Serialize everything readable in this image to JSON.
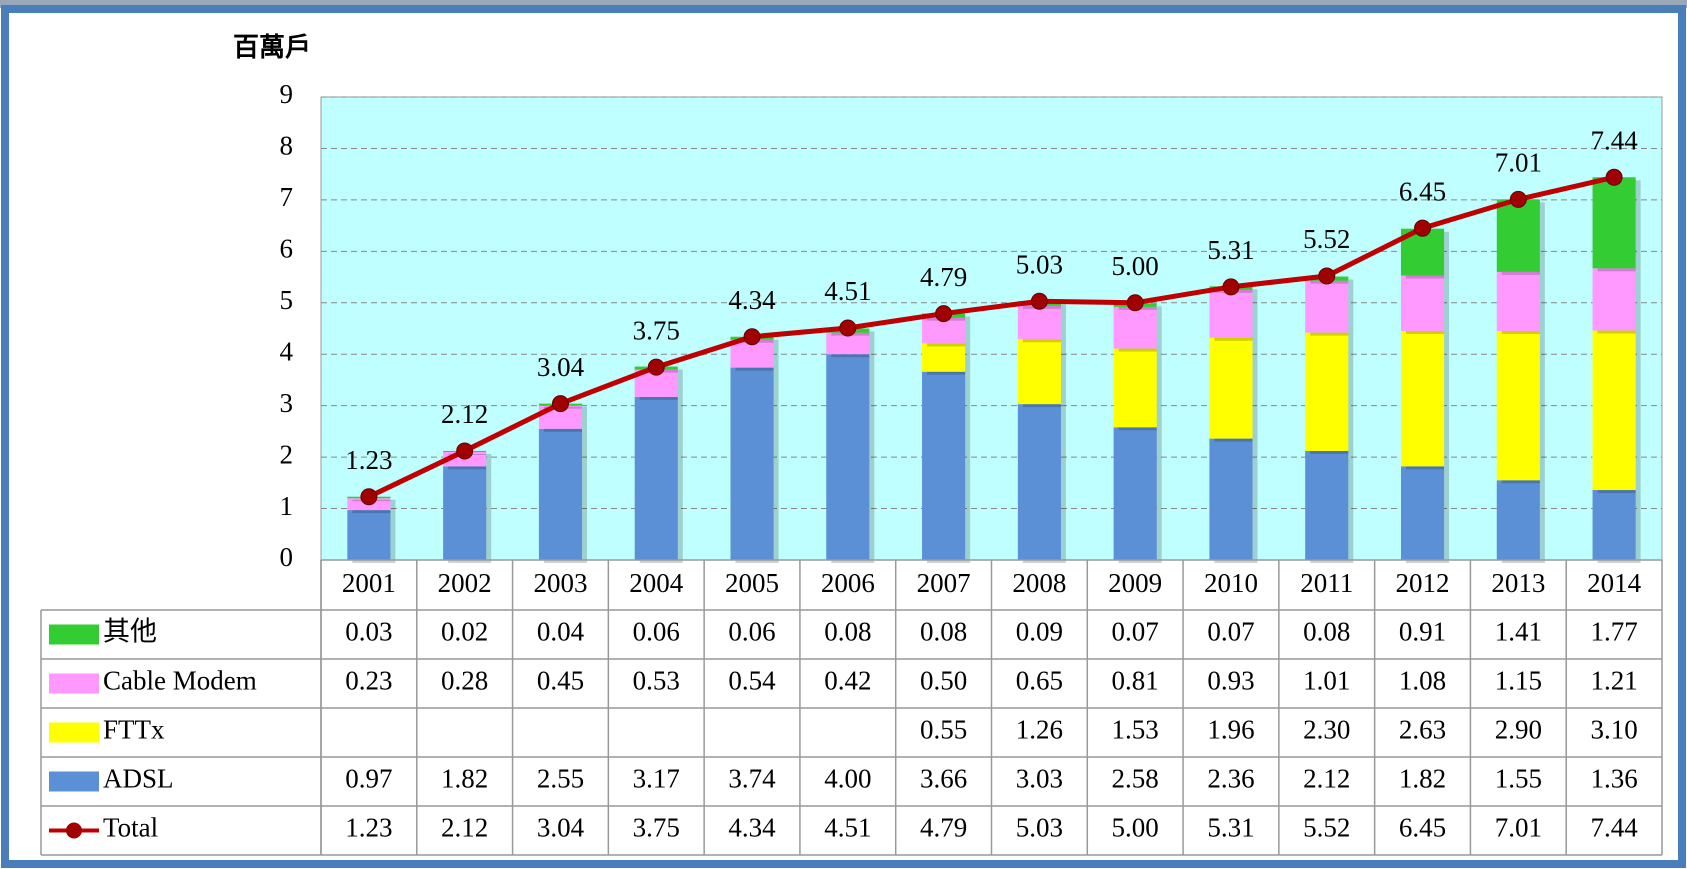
{
  "chart_data": {
    "type": "bar",
    "stacked": true,
    "y_label": "百萬戶",
    "categories": [
      "2001",
      "2002",
      "2003",
      "2004",
      "2005",
      "2006",
      "2007",
      "2008",
      "2009",
      "2010",
      "2011",
      "2012",
      "2013",
      "2014"
    ],
    "ylim": [
      0,
      9
    ],
    "yticks": [
      0,
      1,
      2,
      3,
      4,
      5,
      6,
      7,
      8,
      9
    ],
    "grid": true,
    "background": "#c0ffff",
    "series": [
      {
        "name": "ADSL",
        "color": "#5b8fd6",
        "values": [
          0.97,
          1.82,
          2.55,
          3.17,
          3.74,
          4.0,
          3.66,
          3.03,
          2.58,
          2.36,
          2.12,
          1.82,
          1.55,
          1.36
        ],
        "value_labels": [
          "0.97",
          "1.82",
          "2.55",
          "3.17",
          "3.74",
          "4.00",
          "3.66",
          "3.03",
          "2.58",
          "2.36",
          "2.12",
          "1.82",
          "1.55",
          "1.36"
        ]
      },
      {
        "name": "FTTx",
        "color": "#ffff00",
        "values": [
          null,
          null,
          null,
          null,
          null,
          null,
          0.55,
          1.26,
          1.53,
          1.96,
          2.3,
          2.63,
          2.9,
          3.1
        ],
        "value_labels": [
          null,
          null,
          null,
          null,
          null,
          null,
          "0.55",
          "1.26",
          "1.53",
          "1.96",
          "2.30",
          "2.63",
          "2.90",
          "3.10"
        ]
      },
      {
        "name": "Cable Modem",
        "color": "#ff99ff",
        "values": [
          0.23,
          0.28,
          0.45,
          0.53,
          0.54,
          0.42,
          0.5,
          0.65,
          0.81,
          0.93,
          1.01,
          1.08,
          1.15,
          1.21
        ],
        "value_labels": [
          "0.23",
          "0.28",
          "0.45",
          "0.53",
          "0.54",
          "0.42",
          "0.50",
          "0.65",
          "0.81",
          "0.93",
          "1.01",
          "1.08",
          "1.15",
          "1.21"
        ]
      },
      {
        "name": "其他",
        "color": "#33cc33",
        "values": [
          0.03,
          0.02,
          0.04,
          0.06,
          0.06,
          0.08,
          0.08,
          0.09,
          0.07,
          0.07,
          0.08,
          0.91,
          1.41,
          1.77
        ],
        "value_labels": [
          "0.03",
          "0.02",
          "0.04",
          "0.06",
          "0.06",
          "0.08",
          "0.08",
          "0.09",
          "0.07",
          "0.07",
          "0.08",
          "0.91",
          "1.41",
          "1.77"
        ]
      },
      {
        "name": "Total",
        "color": "#c00000",
        "type": "line",
        "values": [
          1.23,
          2.12,
          3.04,
          3.75,
          4.34,
          4.51,
          4.79,
          5.03,
          5.0,
          5.31,
          5.52,
          6.45,
          7.01,
          7.44
        ],
        "value_labels": [
          "1.23",
          "2.12",
          "3.04",
          "3.75",
          "4.34",
          "4.51",
          "4.79",
          "5.03",
          "5.00",
          "5.31",
          "5.52",
          "6.45",
          "7.01",
          "7.44"
        ]
      }
    ]
  }
}
